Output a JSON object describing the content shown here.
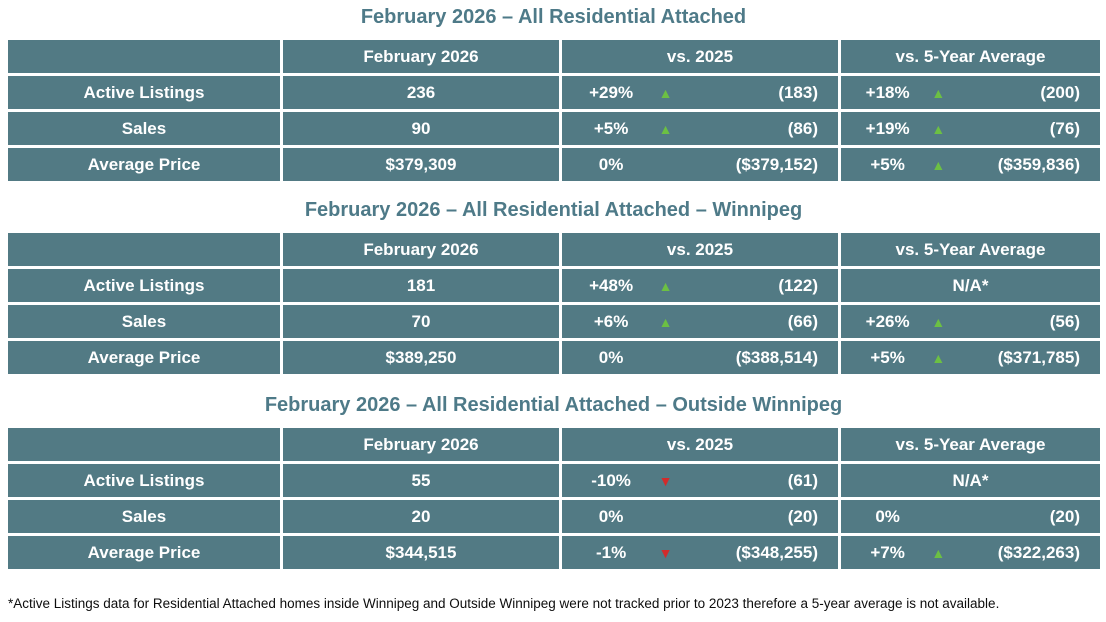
{
  "colors": {
    "table_bg": "#527A84",
    "title_text": "#4E7A88",
    "trend_up": "#6CC043",
    "trend_down": "#D22B2B",
    "cell_text": "#FFFFFF"
  },
  "icons": {
    "up_arrow": "▲",
    "down_arrow": "▼"
  },
  "footnote": "*Active Listings data for Residential Attached homes inside Winnipeg and Outside Winnipeg were not tracked prior to 2023 therefore a 5-year average is not available.",
  "chart_data": [
    {
      "type": "table",
      "title": "February 2026 – All Residential Attached",
      "columns": [
        "",
        "February 2026",
        "vs. 2025",
        "vs. 5-Year Average"
      ],
      "rows": [
        {
          "label": "Active Listings",
          "current": "236",
          "vs_year": {
            "pct": "+29%",
            "arrow": "▲",
            "trend": "up",
            "value": "(183)"
          },
          "vs_avg": {
            "pct": "+18%",
            "arrow": "▲",
            "trend": "up",
            "value": "(200)"
          }
        },
        {
          "label": "Sales",
          "current": "90",
          "vs_year": {
            "pct": "+5%",
            "arrow": "▲",
            "trend": "up",
            "value": "(86)"
          },
          "vs_avg": {
            "pct": "+19%",
            "arrow": "▲",
            "trend": "up",
            "value": "(76)"
          }
        },
        {
          "label": "Average Price",
          "current": "$379,309",
          "vs_year": {
            "pct": "0%",
            "arrow": "",
            "trend": "none",
            "value": "($379,152)"
          },
          "vs_avg": {
            "pct": "+5%",
            "arrow": "▲",
            "trend": "up",
            "value": "($359,836)"
          }
        }
      ]
    },
    {
      "type": "table",
      "title": "February 2026 – All Residential Attached – Winnipeg",
      "columns": [
        "",
        "February 2026",
        "vs. 2025",
        "vs. 5-Year Average"
      ],
      "rows": [
        {
          "label": "Active Listings",
          "current": "181",
          "vs_year": {
            "pct": "+48%",
            "arrow": "▲",
            "trend": "up",
            "value": "(122)"
          },
          "vs_avg": {
            "na": "N/A*"
          }
        },
        {
          "label": "Sales",
          "current": "70",
          "vs_year": {
            "pct": "+6%",
            "arrow": "▲",
            "trend": "up",
            "value": "(66)"
          },
          "vs_avg": {
            "pct": "+26%",
            "arrow": "▲",
            "trend": "up",
            "value": "(56)"
          }
        },
        {
          "label": "Average Price",
          "current": "$389,250",
          "vs_year": {
            "pct": "0%",
            "arrow": "",
            "trend": "none",
            "value": "($388,514)"
          },
          "vs_avg": {
            "pct": "+5%",
            "arrow": "▲",
            "trend": "up",
            "value": "($371,785)"
          }
        }
      ]
    },
    {
      "type": "table",
      "title": "February 2026 – All Residential Attached – Outside Winnipeg",
      "columns": [
        "",
        "February 2026",
        "vs. 2025",
        "vs. 5-Year Average"
      ],
      "rows": [
        {
          "label": "Active Listings",
          "current": "55",
          "vs_year": {
            "pct": "-10%",
            "arrow": "▼",
            "trend": "down",
            "value": "(61)"
          },
          "vs_avg": {
            "na": "N/A*"
          }
        },
        {
          "label": "Sales",
          "current": "20",
          "vs_year": {
            "pct": "0%",
            "arrow": "",
            "trend": "none",
            "value": "(20)"
          },
          "vs_avg": {
            "pct": "0%",
            "arrow": "",
            "trend": "none",
            "value": "(20)"
          }
        },
        {
          "label": "Average Price",
          "current": "$344,515",
          "vs_year": {
            "pct": "-1%",
            "arrow": "▼",
            "trend": "down",
            "value": "($348,255)"
          },
          "vs_avg": {
            "pct": "+7%",
            "arrow": "▲",
            "trend": "up",
            "value": "($322,263)"
          }
        }
      ]
    }
  ]
}
